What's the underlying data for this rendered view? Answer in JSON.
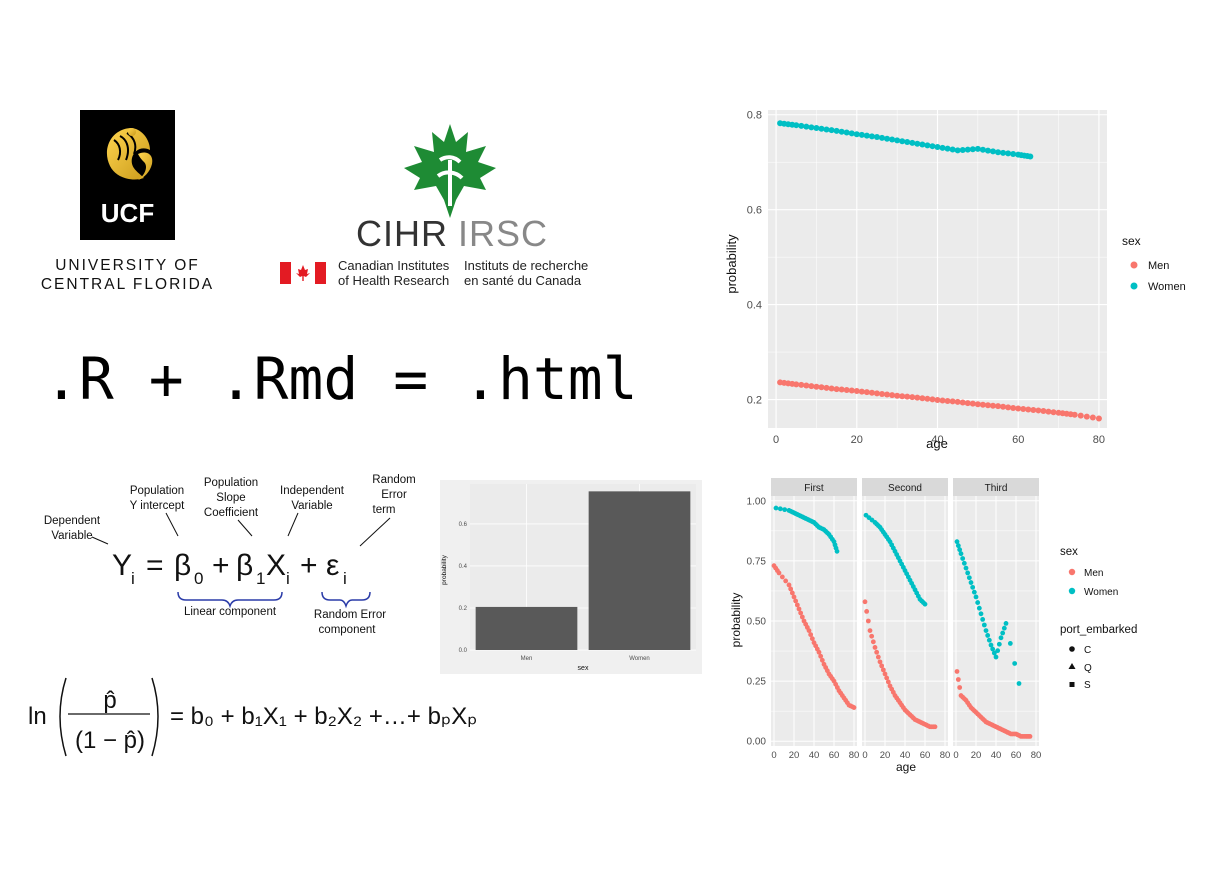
{
  "logos": {
    "ucf": {
      "line1": "UNIVERSITY OF",
      "line2": "CENTRAL FLORIDA",
      "mark_text": "UCF"
    },
    "cihr": {
      "word_en": "CIHR",
      "word_fr": "IRSC",
      "en_line1": "Canadian Institutes",
      "en_line2": "of Health Research",
      "fr_line1": "Instituts de recherche",
      "fr_line2": "en santé du Canada"
    }
  },
  "headline": ".R + .Rmd = .html",
  "regression_formula": {
    "terms": {
      "Y": "Y",
      "i": "i",
      "eq": "=",
      "beta": "β",
      "zero": "0",
      "plus": "+",
      "one": "1",
      "X": "X",
      "eps": "ε"
    },
    "labels": {
      "dependent": [
        "Dependent",
        "Variable"
      ],
      "intercept": [
        "Population",
        "Y  intercept"
      ],
      "slope": [
        "Population",
        "Slope",
        "Coefficient"
      ],
      "independent": [
        "Independent",
        "Variable"
      ],
      "error": [
        "Random",
        "Error",
        "term"
      ],
      "linear": "Linear component",
      "error_component": [
        "Random Error",
        "component"
      ]
    }
  },
  "logit_formula": {
    "ln": "ln",
    "p_hat": "p̂",
    "denominator": "(1 − p̂)",
    "rhs": "= b₀ + b₁X₁ + b₂X₂ +…+ bₚXₚ"
  },
  "colors": {
    "men": "#F8766D",
    "women": "#00BFC4",
    "panel_bg": "#EBEBEB",
    "bar": "#595959",
    "strip_bg": "#D9D9D9"
  },
  "chart_data": [
    {
      "type": "scatter",
      "xlabel": "age",
      "ylabel": "probability",
      "xlim": [
        -2,
        82
      ],
      "ylim": [
        0.14,
        0.81
      ],
      "x_ticks": [
        0,
        20,
        40,
        60,
        80
      ],
      "y_ticks": [
        0.2,
        0.4,
        0.6,
        0.8
      ],
      "x_tick_labels": [
        "0",
        "20",
        "40",
        "60",
        "80"
      ],
      "y_tick_labels": [
        "0.2",
        "0.4",
        "0.6",
        "0.8"
      ],
      "legend": {
        "title": "sex",
        "entries": [
          "Men",
          "Women"
        ],
        "placement": "right"
      },
      "grid": true,
      "series": [
        {
          "name": "Men",
          "x": [
            1,
            5,
            10,
            15,
            20,
            25,
            30,
            35,
            40,
            45,
            50,
            55,
            60,
            65,
            70,
            74,
            80
          ],
          "y": [
            0.236,
            0.232,
            0.227,
            0.222,
            0.218,
            0.213,
            0.208,
            0.204,
            0.199,
            0.195,
            0.19,
            0.186,
            0.181,
            0.177,
            0.172,
            0.168,
            0.16
          ]
        },
        {
          "name": "Women",
          "x": [
            1,
            5,
            10,
            15,
            20,
            25,
            30,
            35,
            40,
            45,
            50,
            55,
            60,
            63
          ],
          "y": [
            0.782,
            0.778,
            0.772,
            0.766,
            0.759,
            0.753,
            0.746,
            0.739,
            0.732,
            0.725,
            0.728,
            0.721,
            0.716,
            0.712
          ]
        }
      ]
    },
    {
      "type": "bar",
      "xlabel": "sex",
      "ylabel": "probability",
      "categories": [
        "Men",
        "Women"
      ],
      "values": [
        0.205,
        0.755
      ],
      "ylim": [
        0,
        0.79
      ],
      "y_ticks": [
        0.0,
        0.2,
        0.4,
        0.6
      ],
      "y_tick_labels": [
        "0.0",
        "0.2",
        "0.4",
        "0.6"
      ],
      "grid": true
    },
    {
      "type": "scatter",
      "xlabel": "age",
      "ylabel": "probability",
      "facets": [
        "First",
        "Second",
        "Third"
      ],
      "xlim": [
        -3,
        83
      ],
      "ylim": [
        -0.02,
        1.02
      ],
      "x_ticks": [
        0,
        20,
        40,
        60,
        80
      ],
      "y_ticks": [
        0.0,
        0.25,
        0.5,
        0.75,
        1.0
      ],
      "x_tick_labels": [
        "0",
        "20",
        "40",
        "60",
        "80"
      ],
      "y_tick_labels": [
        "0.00",
        "0.25",
        "0.50",
        "0.75",
        "1.00"
      ],
      "legend": {
        "title": "sex",
        "entries": [
          "Men",
          "Women"
        ],
        "title2": "port_embarked",
        "entries2": [
          "C",
          "Q",
          "S"
        ],
        "placement": "right"
      },
      "grid": true,
      "series": [
        {
          "name": "Men",
          "facet": "First",
          "x": [
            0,
            5,
            15,
            20,
            25,
            30,
            35,
            40,
            45,
            50,
            55,
            60,
            65,
            70,
            75,
            80
          ],
          "y": [
            0.73,
            0.7,
            0.65,
            0.6,
            0.55,
            0.5,
            0.46,
            0.41,
            0.37,
            0.32,
            0.28,
            0.25,
            0.21,
            0.18,
            0.15,
            0.14
          ]
        },
        {
          "name": "Women",
          "facet": "First",
          "x": [
            2,
            15,
            20,
            25,
            30,
            35,
            40,
            45,
            50,
            55,
            60,
            63
          ],
          "y": [
            0.97,
            0.96,
            0.95,
            0.94,
            0.93,
            0.92,
            0.91,
            0.89,
            0.88,
            0.86,
            0.83,
            0.79
          ]
        },
        {
          "name": "Men",
          "facet": "Second",
          "x": [
            0,
            5,
            10,
            15,
            20,
            25,
            30,
            35,
            40,
            45,
            50,
            55,
            60,
            65,
            70
          ],
          "y": [
            0.58,
            0.46,
            0.39,
            0.33,
            0.28,
            0.23,
            0.19,
            0.16,
            0.13,
            0.11,
            0.09,
            0.08,
            0.07,
            0.06,
            0.06
          ]
        },
        {
          "name": "Women",
          "facet": "Second",
          "x": [
            1,
            10,
            15,
            20,
            25,
            30,
            35,
            40,
            45,
            50,
            55,
            60
          ],
          "y": [
            0.94,
            0.91,
            0.89,
            0.86,
            0.83,
            0.79,
            0.75,
            0.71,
            0.67,
            0.63,
            0.59,
            0.57
          ]
        },
        {
          "name": "Men",
          "facet": "Third",
          "x": [
            1,
            5,
            10,
            15,
            20,
            25,
            30,
            35,
            40,
            45,
            50,
            55,
            60,
            65,
            70,
            74
          ],
          "y": [
            0.29,
            0.19,
            0.17,
            0.14,
            0.12,
            0.1,
            0.08,
            0.07,
            0.06,
            0.05,
            0.04,
            0.03,
            0.03,
            0.02,
            0.02,
            0.02
          ]
        },
        {
          "name": "Women",
          "facet": "Third",
          "x": [
            1,
            5,
            10,
            15,
            20,
            25,
            30,
            35,
            40,
            45,
            50,
            63
          ],
          "y": [
            0.83,
            0.78,
            0.72,
            0.66,
            0.6,
            0.53,
            0.46,
            0.4,
            0.35,
            0.43,
            0.49,
            0.24
          ]
        }
      ]
    }
  ]
}
